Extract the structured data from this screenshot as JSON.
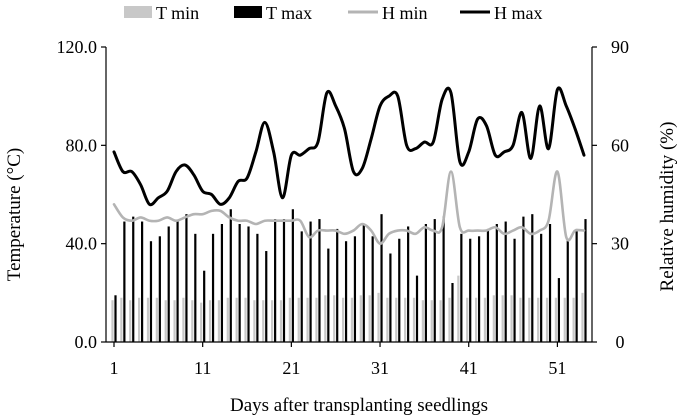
{
  "chart_data": {
    "type": "bar",
    "xlabel": "Days after transplanting seedlings",
    "ylabel_left": "Temperature (°C)",
    "ylabel_right": "Relative humidity (%)",
    "y_left_range": [
      0,
      120
    ],
    "y_left_ticks": [
      "0.0",
      "40.0",
      "80.0",
      "120.0"
    ],
    "y_right_range": [
      0,
      90
    ],
    "y_right_ticks": [
      "0",
      "30",
      "60",
      "90"
    ],
    "x_ticks": [
      "1",
      "11",
      "21",
      "31",
      "41",
      "51"
    ],
    "legend_position": "top",
    "x": [
      1,
      2,
      3,
      4,
      5,
      6,
      7,
      8,
      9,
      10,
      11,
      12,
      13,
      14,
      15,
      16,
      17,
      18,
      19,
      20,
      21,
      22,
      23,
      24,
      25,
      26,
      27,
      28,
      29,
      30,
      31,
      32,
      33,
      34,
      35,
      36,
      37,
      38,
      39,
      40,
      41,
      42,
      43,
      44,
      45,
      46,
      47,
      48,
      49,
      50,
      51,
      52,
      53,
      54
    ],
    "series": [
      {
        "name": "T min",
        "kind": "bar",
        "axis": "left",
        "color": "#c8c8c8",
        "values": [
          17,
          18,
          17,
          18,
          18,
          18,
          17,
          17,
          18,
          17,
          16,
          17,
          17,
          18,
          18,
          18,
          17,
          17,
          17,
          17,
          18,
          18,
          18,
          18,
          19,
          19,
          18,
          18,
          19,
          19,
          20,
          18,
          18,
          18,
          18,
          17,
          17,
          17,
          18,
          27,
          18,
          18,
          18,
          19,
          19,
          19,
          18,
          18,
          18,
          18,
          18,
          18,
          18,
          20
        ]
      },
      {
        "name": "T max",
        "kind": "bar",
        "axis": "left",
        "color": "#000000",
        "values": [
          19,
          49,
          51,
          49,
          41,
          43,
          47,
          49,
          52,
          44,
          29,
          44,
          48,
          54,
          48,
          47,
          44,
          37,
          50,
          50,
          54,
          45,
          49,
          50,
          38,
          46,
          41,
          43,
          48,
          43,
          52,
          36,
          42,
          47,
          27,
          48,
          50,
          51,
          24,
          44,
          42,
          43,
          46,
          48,
          49,
          42,
          51,
          52,
          44,
          48,
          26,
          42,
          46,
          50
        ]
      },
      {
        "name": "H min",
        "kind": "line",
        "axis": "right",
        "color": "#b4b4b4",
        "values": [
          42,
          38,
          37,
          38,
          37,
          37,
          38,
          37,
          38,
          39,
          39,
          40,
          40,
          38,
          37,
          37,
          36,
          37,
          37,
          37,
          37,
          37,
          32,
          34,
          34,
          34,
          33,
          34,
          36,
          34,
          30,
          33,
          34,
          34,
          33,
          35,
          34,
          35,
          52,
          35,
          34,
          34,
          34,
          35,
          33,
          34,
          35,
          33,
          34,
          37,
          52,
          32,
          34,
          34
        ]
      },
      {
        "name": "H max",
        "kind": "line",
        "axis": "right",
        "color": "#000000",
        "values": [
          58,
          52,
          52,
          48,
          42,
          44,
          46,
          52,
          54,
          51,
          46,
          45,
          42,
          44,
          49,
          50,
          58,
          67,
          58,
          44,
          57,
          57,
          59,
          61,
          76,
          72,
          65,
          52,
          53,
          62,
          72,
          75,
          75,
          60,
          59,
          61,
          61,
          74,
          76,
          55,
          58,
          68,
          66,
          57,
          58,
          60,
          70,
          56,
          72,
          59,
          77,
          72,
          65,
          57
        ]
      }
    ]
  }
}
